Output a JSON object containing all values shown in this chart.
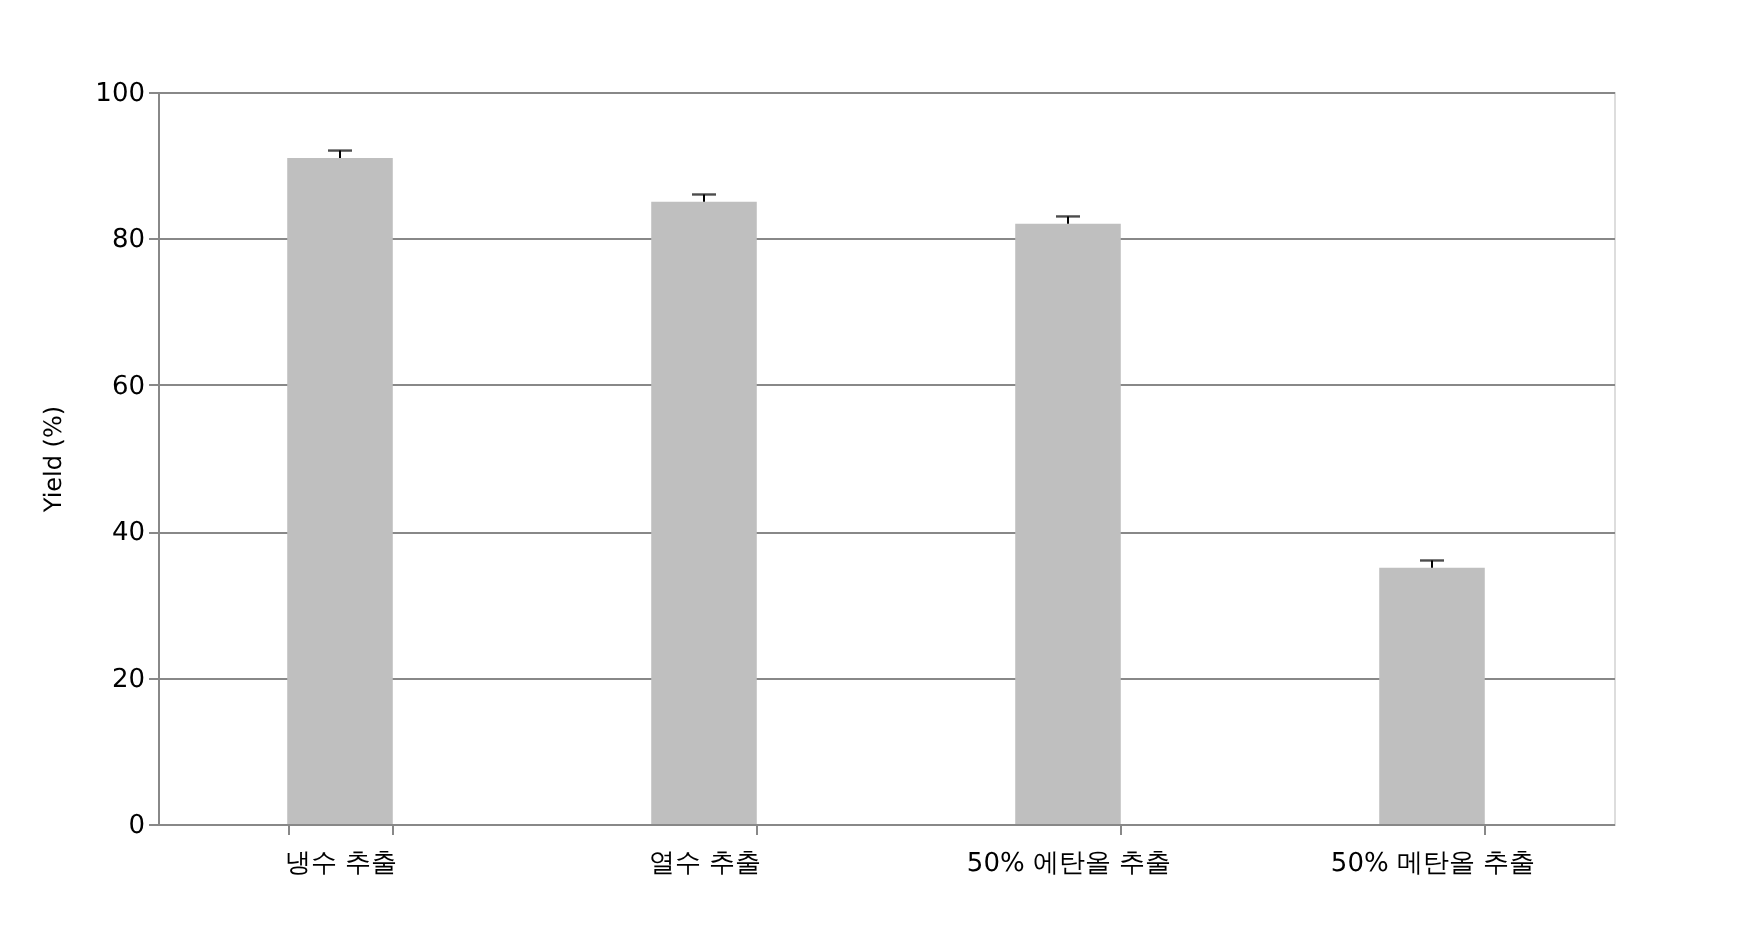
{
  "chart_data": {
    "type": "bar",
    "ylabel": "Yield (%)",
    "categories": [
      "냉수 추출",
      "열수 추출",
      "50% 에탄올 추출",
      "50% 메탄올 추출"
    ],
    "values": [
      91,
      85,
      82,
      35
    ],
    "errors": [
      [
        91,
        92
      ],
      [
        85,
        86
      ],
      [
        82,
        83
      ],
      [
        35,
        36
      ]
    ],
    "color": "#bfbfbf",
    "ylim": [
      0,
      100
    ],
    "yticks": [
      0,
      20,
      40,
      60,
      80,
      100
    ],
    "grid": "y"
  }
}
